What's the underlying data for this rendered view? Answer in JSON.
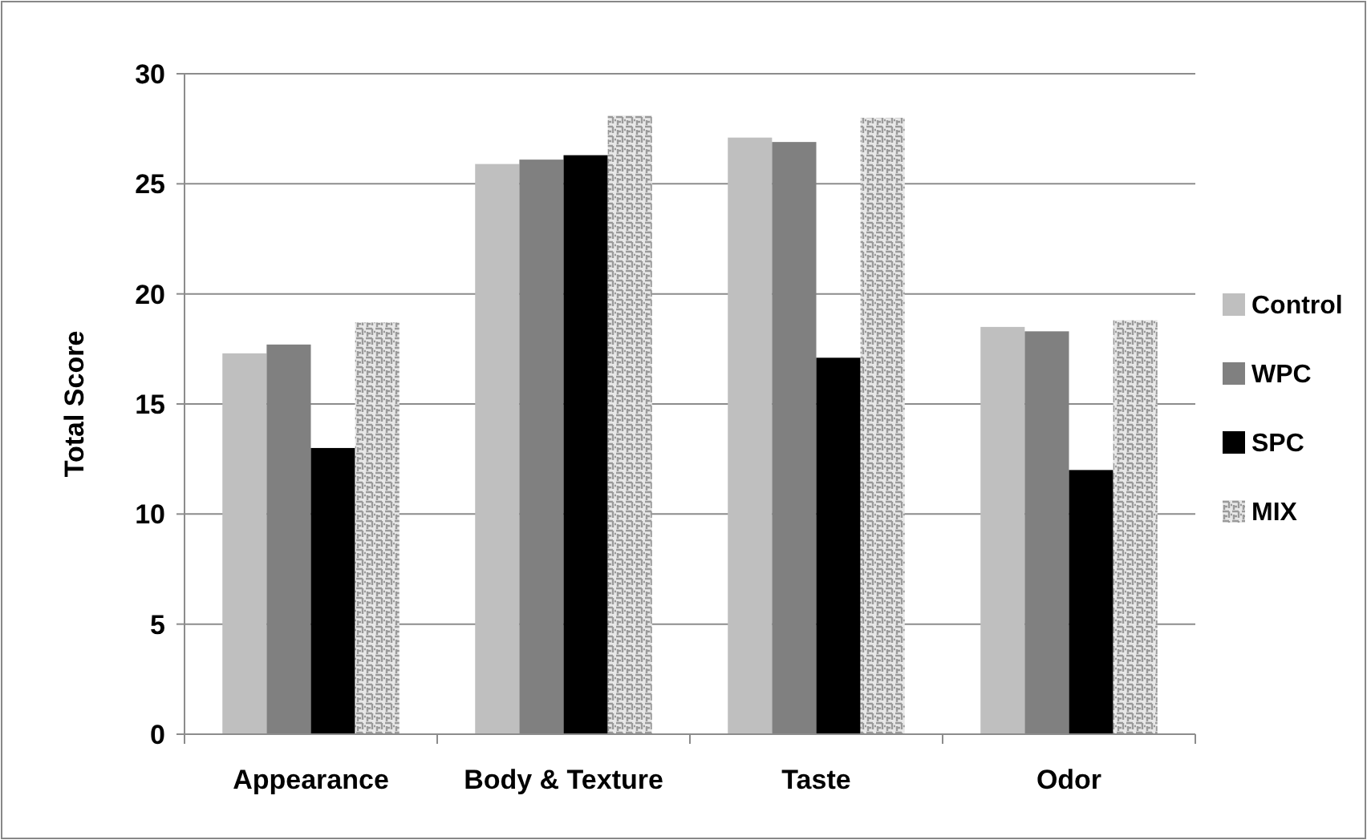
{
  "chart_data": {
    "type": "bar",
    "ylabel": "Total Score",
    "categories": [
      "Appearance",
      "Body & Texture",
      "Taste",
      "Odor"
    ],
    "series": [
      {
        "name": "Control",
        "color": "#bfbfbf",
        "values": [
          17.3,
          25.9,
          27.1,
          18.5
        ]
      },
      {
        "name": "WPC",
        "color": "#808080",
        "values": [
          17.7,
          26.1,
          26.9,
          18.3
        ]
      },
      {
        "name": "SPC",
        "color": "#000000",
        "values": [
          13.0,
          26.3,
          17.1,
          12.0
        ]
      },
      {
        "name": "MIX",
        "color": "#9a9a9a",
        "values": [
          18.7,
          28.1,
          28.0,
          18.8
        ]
      }
    ],
    "ylim": [
      0,
      30
    ],
    "yticks": [
      0,
      5,
      10,
      15,
      20,
      25,
      30
    ],
    "grid": "y",
    "legend": "right"
  }
}
